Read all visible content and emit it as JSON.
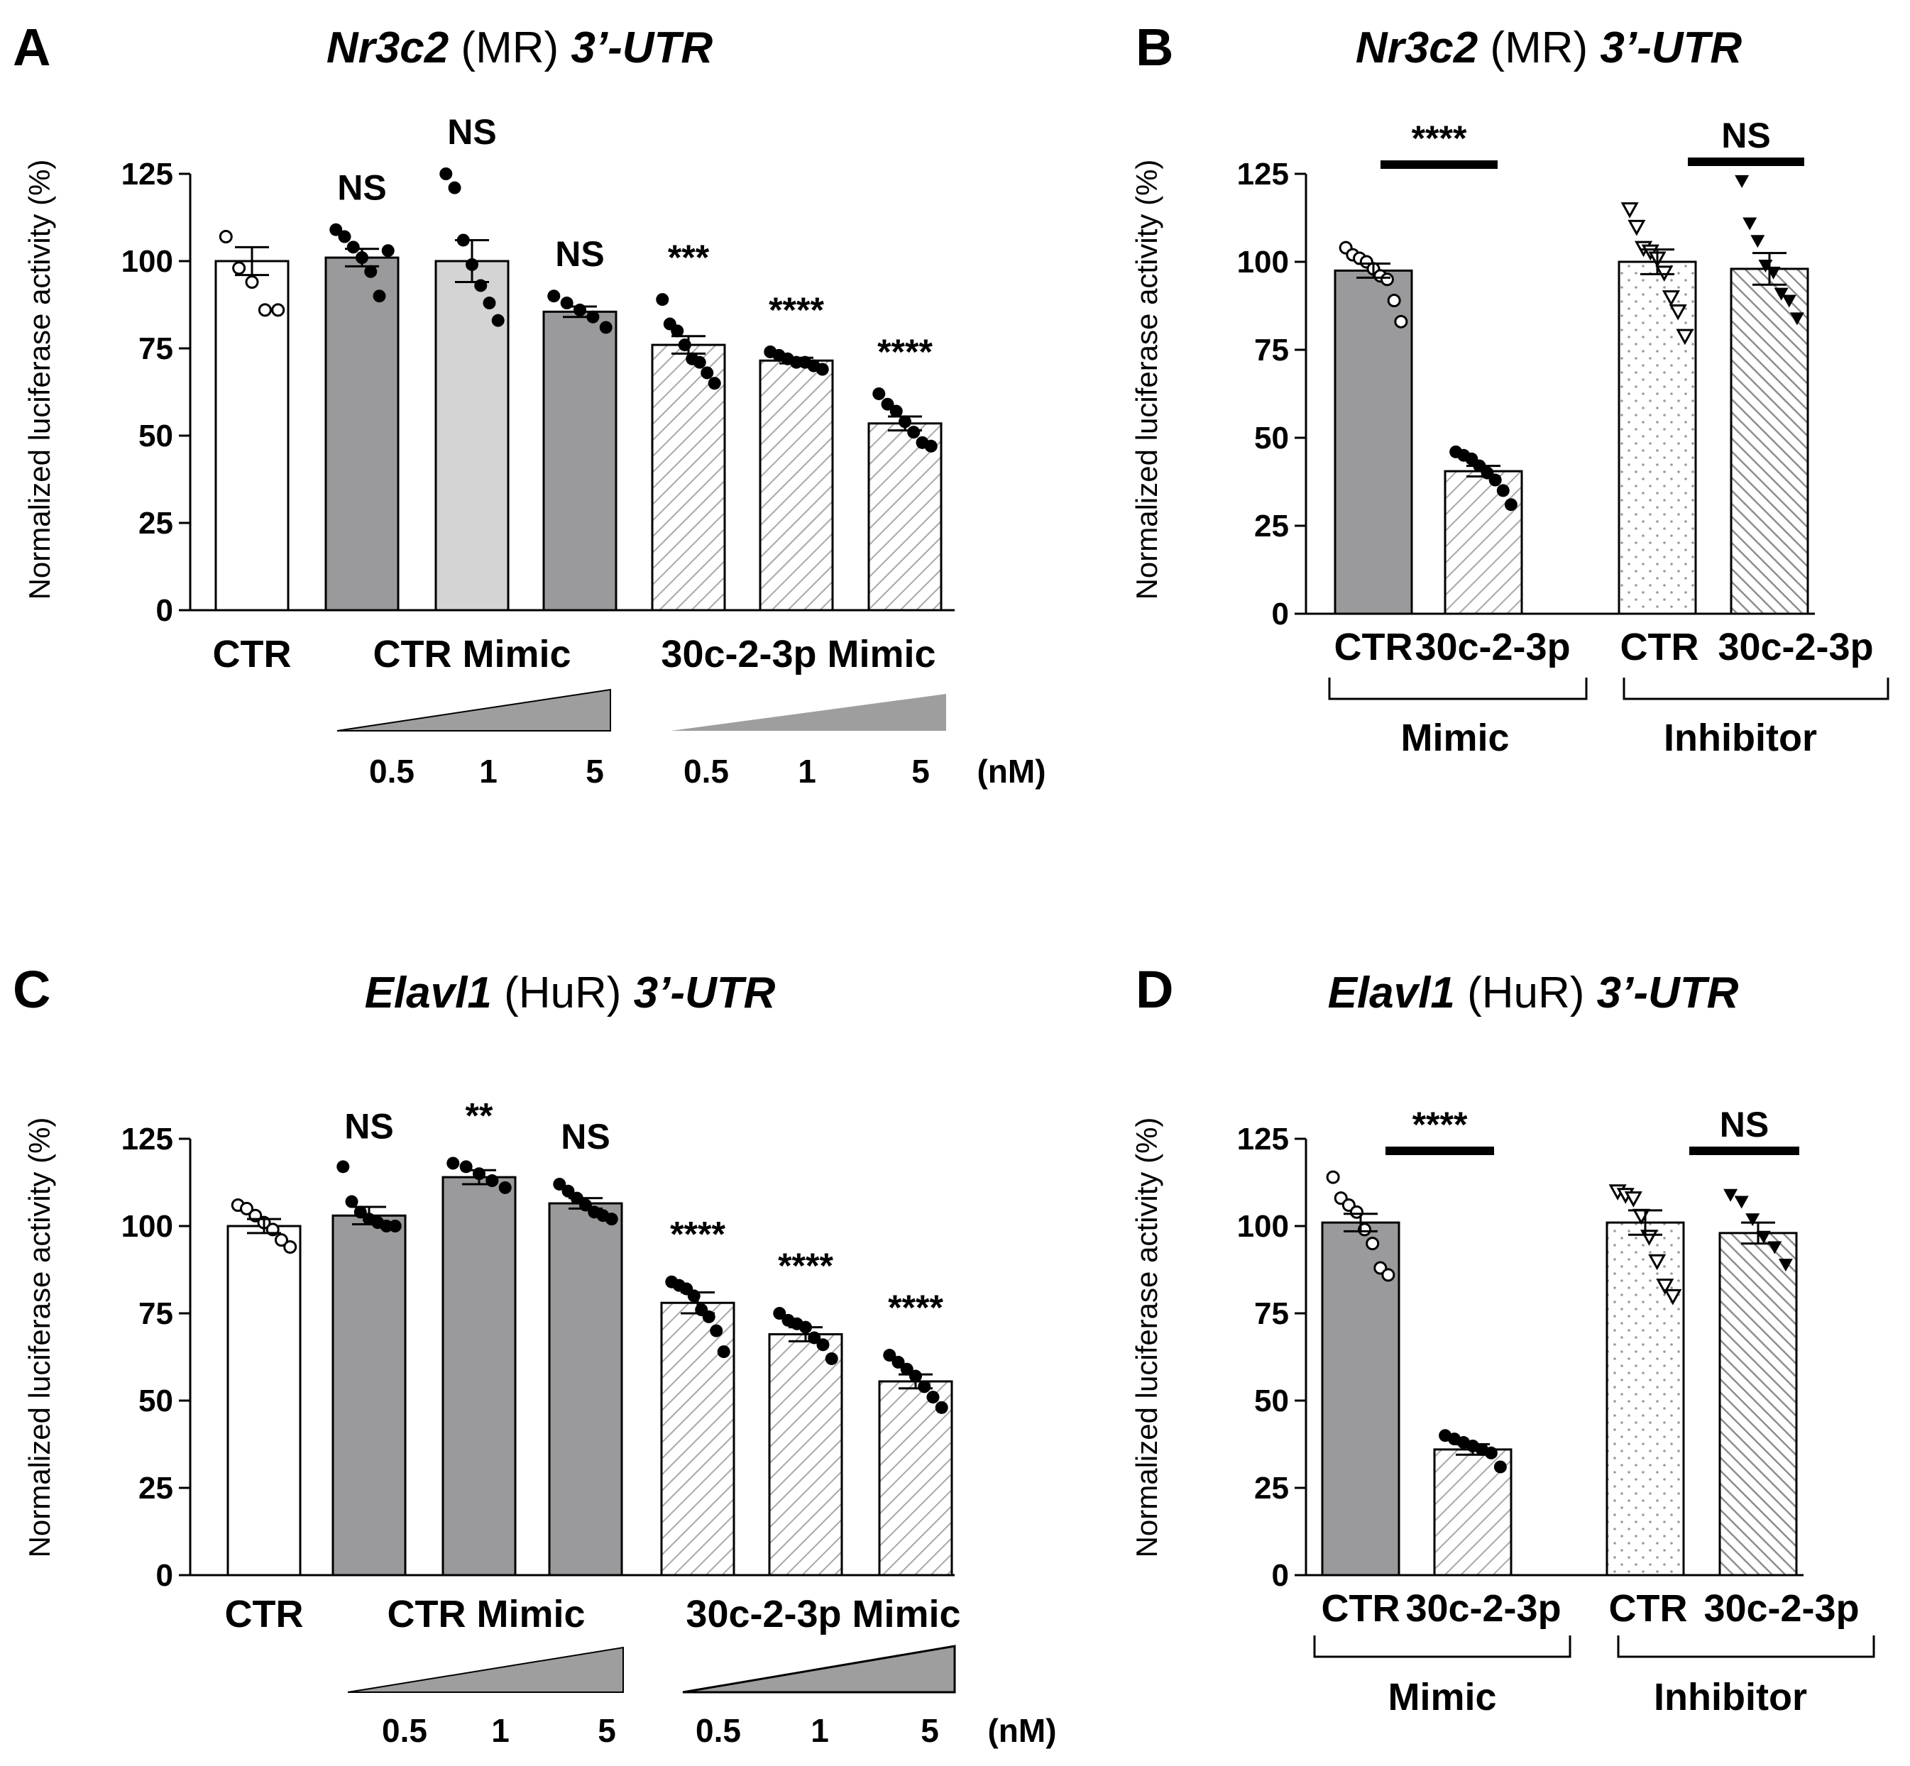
{
  "styles": {
    "white": "#ffffff",
    "dark": "#9a9a9c",
    "light": "#d4d4d4",
    "stroke": "#000000",
    "hatch": "#a8a8a8",
    "dots": "#9a9a9a",
    "wedge": "#9e9e9e"
  },
  "panels": {
    "A": {
      "letter": "A",
      "title_gene": "Nr3c2",
      "title_protein": "(MR)",
      "title_region": "3’-UTR",
      "cat_ctr": "CTR",
      "cat_ctr_mimic": "CTR Mimic",
      "cat_mir_mimic": "30c-2-3p Mimic",
      "doses": [
        "0.5",
        "1",
        "5",
        "0.5",
        "1",
        "5"
      ],
      "dose_unit": "(nM)"
    },
    "B": {
      "letter": "B",
      "title_gene": "Nr3c2",
      "title_protein": "(MR)",
      "title_region": "3’-UTR",
      "bar_labels": [
        "CTR",
        "30c-2-3p",
        "CTR",
        "30c-2-3p"
      ],
      "group_mimic": "Mimic",
      "group_inhibitor": "Inhibitor"
    },
    "C": {
      "letter": "C",
      "title_gene": "Elavl1",
      "title_protein": "(HuR)",
      "title_region": "3’-UTR",
      "cat_ctr": "CTR",
      "cat_ctr_mimic": "CTR Mimic",
      "cat_mir_mimic": "30c-2-3p Mimic",
      "doses": [
        "0.5",
        "1",
        "5",
        "0.5",
        "1",
        "5"
      ],
      "dose_unit": "(nM)"
    },
    "D": {
      "letter": "D",
      "title_gene": "Elavl1",
      "title_protein": "(HuR)",
      "title_region": "3’-UTR",
      "bar_labels": [
        "CTR",
        "30c-2-3p",
        "CTR",
        "30c-2-3p"
      ],
      "group_mimic": "Mimic",
      "group_inhibitor": "Inhibitor"
    }
  },
  "chart_data": [
    {
      "panel": "A",
      "type": "bar",
      "title": "Nr3c2 (MR) 3’-UTR",
      "ylabel": "Normalized luciferase activity (%)",
      "ylim": [
        0,
        125
      ],
      "yticks": [
        "0",
        "25",
        "50",
        "75",
        "100",
        "125"
      ],
      "bars": [
        {
          "name": "CTR",
          "value": 100,
          "sem": 4,
          "fill": "white",
          "marker": "open-circle",
          "points": [
            107,
            98,
            94,
            86,
            86
          ],
          "sig": ""
        },
        {
          "name": "CTR Mimic 0.5 nM",
          "value": 101,
          "sem": 2.5,
          "fill": "dark",
          "marker": "filled-circle",
          "points": [
            109,
            107,
            104,
            101,
            97,
            90,
            103
          ],
          "sig": "NS"
        },
        {
          "name": "CTR Mimic 1 nM",
          "value": 100,
          "sem": 6,
          "fill": "light",
          "marker": "filled-circle",
          "points": [
            125,
            121,
            106,
            99,
            93,
            88,
            83
          ],
          "sig": "NS"
        },
        {
          "name": "CTR Mimic 5 nM",
          "value": 85.5,
          "sem": 1.5,
          "fill": "dark",
          "marker": "filled-circle",
          "points": [
            90,
            88,
            86,
            84,
            81
          ],
          "sig": "NS"
        },
        {
          "name": "30c-2-3p Mimic 0.5 nM",
          "value": 76,
          "sem": 2.5,
          "fill": "hatch",
          "marker": "filled-circle",
          "points": [
            89,
            82,
            80,
            76,
            72,
            71,
            68,
            65
          ],
          "sig": "***"
        },
        {
          "name": "30c-2-3p Mimic 1 nM",
          "value": 71.5,
          "sem": 0.8,
          "fill": "hatch",
          "marker": "filled-circle",
          "points": [
            74,
            73,
            72,
            71,
            71,
            70,
            69
          ],
          "sig": "****"
        },
        {
          "name": "30c-2-3p Mimic 5 nM",
          "value": 53.5,
          "sem": 2,
          "fill": "hatch",
          "marker": "filled-circle",
          "points": [
            62,
            59,
            57,
            54,
            51,
            48,
            47
          ],
          "sig": "****"
        }
      ]
    },
    {
      "panel": "B",
      "type": "bar",
      "title": "Nr3c2 (MR) 3’-UTR",
      "ylabel": "Normalized luciferase activity (%)",
      "ylim": [
        0,
        125
      ],
      "yticks": [
        "0",
        "25",
        "50",
        "75",
        "100",
        "125"
      ],
      "bars": [
        {
          "name": "Mimic CTR",
          "value": 97.5,
          "sem": 2,
          "fill": "dark",
          "marker": "open-circle",
          "points": [
            104,
            102,
            101,
            100,
            98,
            96,
            95,
            89,
            83
          ]
        },
        {
          "name": "Mimic 30c-2-3p",
          "value": 40.5,
          "sem": 1.5,
          "fill": "hatch",
          "marker": "filled-circle",
          "points": [
            46,
            45,
            44,
            42,
            40,
            38,
            35,
            31
          ]
        },
        {
          "name": "Inhibitor CTR",
          "value": 100,
          "sem": 3.5,
          "fill": "dots",
          "marker": "open-triangle",
          "points": [
            115,
            110,
            104,
            103,
            101,
            97,
            90,
            86,
            79
          ]
        },
        {
          "name": "Inhibitor 30c-2-3p",
          "value": 98,
          "sem": 4.5,
          "fill": "dhatch",
          "marker": "filled-triangle",
          "points": [
            123,
            111,
            106,
            99,
            97,
            91,
            89,
            84
          ]
        }
      ],
      "comparisons": [
        {
          "bars": [
            0,
            1
          ],
          "label": "****"
        },
        {
          "bars": [
            2,
            3
          ],
          "label": "NS"
        }
      ]
    },
    {
      "panel": "C",
      "type": "bar",
      "title": "Elavl1 (HuR) 3’-UTR",
      "ylabel": "Normalized luciferase activity (%)",
      "ylim": [
        0,
        125
      ],
      "yticks": [
        "0",
        "25",
        "50",
        "75",
        "100",
        "125"
      ],
      "bars": [
        {
          "name": "CTR",
          "value": 100,
          "sem": 2,
          "fill": "white",
          "marker": "open-circle",
          "points": [
            106,
            105,
            103,
            101,
            99,
            96,
            94
          ]
        },
        {
          "name": "CTR Mimic 0.5 nM",
          "value": 103,
          "sem": 2.5,
          "fill": "dark",
          "marker": "filled-circle",
          "points": [
            117,
            107,
            104,
            102,
            101,
            100,
            100
          ]
        },
        {
          "name": "CTR Mimic 1 nM",
          "value": 114,
          "sem": 2,
          "fill": "dark",
          "marker": "filled-circle",
          "points": [
            118,
            117,
            115,
            113,
            111
          ],
          "sig": "**"
        },
        {
          "name": "CTR Mimic 5 nM",
          "value": 106.5,
          "sem": 1.5,
          "fill": "dark",
          "marker": "filled-circle",
          "points": [
            112,
            110,
            108,
            106,
            104,
            103,
            102
          ],
          "sig": "NS"
        },
        {
          "name": "30c-2-3p Mimic 0.5 nM",
          "value": 78,
          "sem": 3,
          "fill": "hatch",
          "marker": "filled-circle",
          "points": [
            84,
            83,
            82,
            80,
            76,
            74,
            70,
            64
          ],
          "sig": "****"
        },
        {
          "name": "30c-2-3p Mimic 1 nM",
          "value": 69,
          "sem": 2,
          "fill": "hatch",
          "marker": "filled-circle",
          "points": [
            75,
            73,
            72,
            71,
            68,
            66,
            62
          ],
          "sig": "****"
        },
        {
          "name": "30c-2-3p Mimic 5 nM",
          "value": 55.5,
          "sem": 2,
          "fill": "hatch",
          "marker": "filled-circle",
          "points": [
            63,
            61,
            59,
            57,
            54,
            51,
            48
          ],
          "sig": "****"
        }
      ],
      "comparisons": [
        {
          "bars": [
            1,
            1
          ],
          "label": "NS"
        }
      ]
    },
    {
      "panel": "D",
      "type": "bar",
      "title": "Elavl1 (HuR) 3’-UTR",
      "ylabel": "Normalized luciferase activity (%)",
      "ylim": [
        0,
        125
      ],
      "yticks": [
        "0",
        "25",
        "50",
        "75",
        "100",
        "125"
      ],
      "bars": [
        {
          "name": "Mimic CTR",
          "value": 101,
          "sem": 2.5,
          "fill": "dark",
          "marker": "open-circle",
          "points": [
            114,
            108,
            106,
            104,
            99,
            95,
            88,
            86
          ]
        },
        {
          "name": "Mimic 30c-2-3p",
          "value": 36,
          "sem": 1.5,
          "fill": "hatch",
          "marker": "filled-circle",
          "points": [
            40,
            39,
            38,
            37,
            36,
            35,
            31
          ]
        },
        {
          "name": "Inhibitor CTR",
          "value": 101,
          "sem": 3.5,
          "fill": "dots",
          "marker": "open-triangle",
          "points": [
            110,
            109,
            108,
            103,
            97,
            90,
            83,
            80
          ]
        },
        {
          "name": "Inhibitor 30c-2-3p",
          "value": 98,
          "sem": 3,
          "fill": "dhatch",
          "marker": "filled-triangle",
          "points": [
            109,
            107,
            102,
            97,
            94,
            89
          ]
        }
      ],
      "comparisons": [
        {
          "bars": [
            0,
            1
          ],
          "label": "****"
        },
        {
          "bars": [
            2,
            3
          ],
          "label": "NS"
        }
      ]
    }
  ]
}
